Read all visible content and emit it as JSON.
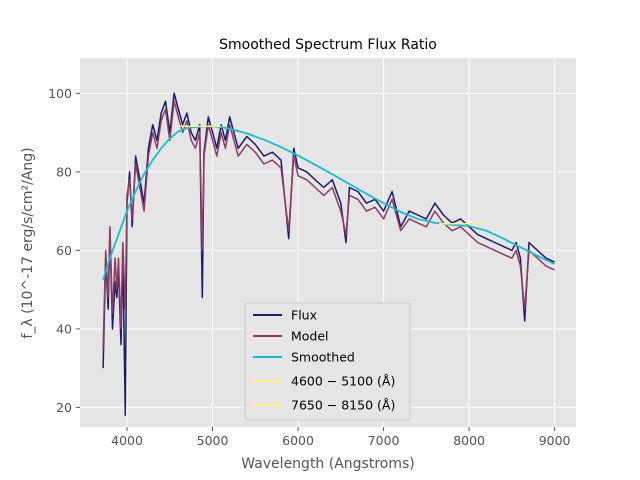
{
  "chart_data": {
    "type": "line",
    "title": "Smoothed Spectrum Flux Ratio",
    "xlabel": "Wavelength (Angstroms)",
    "ylabel": "f_λ (10^-17 erg/s/cm²/Ang)",
    "xlim": [
      3450,
      9250
    ],
    "ylim": [
      15,
      109
    ],
    "xticks": [
      4000,
      5000,
      6000,
      7000,
      8000,
      9000
    ],
    "yticks": [
      20,
      40,
      60,
      80,
      100
    ],
    "grid": true,
    "legend_position": "bottom-center",
    "series": [
      {
        "name": "Flux",
        "color": "#1b1b6b",
        "x": [
          3720,
          3750,
          3780,
          3800,
          3830,
          3860,
          3880,
          3900,
          3930,
          3950,
          3980,
          4000,
          4030,
          4060,
          4100,
          4150,
          4200,
          4250,
          4300,
          4350,
          4400,
          4450,
          4500,
          4550,
          4600,
          4650,
          4700,
          4750,
          4800,
          4850,
          4880,
          4900,
          4950,
          5000,
          5050,
          5100,
          5150,
          5200,
          5250,
          5300,
          5400,
          5500,
          5600,
          5700,
          5800,
          5890,
          5950,
          6000,
          6100,
          6200,
          6300,
          6400,
          6500,
          6560,
          6600,
          6700,
          6800,
          6900,
          7000,
          7100,
          7200,
          7300,
          7400,
          7500,
          7600,
          7700,
          7800,
          7900,
          8000,
          8100,
          8200,
          8300,
          8400,
          8500,
          8550,
          8600,
          8650,
          8700,
          8800,
          8900,
          9000
        ],
        "values": [
          30,
          58,
          45,
          65,
          40,
          52,
          48,
          55,
          36,
          60,
          18,
          72,
          80,
          66,
          84,
          78,
          72,
          86,
          92,
          88,
          95,
          98,
          90,
          100,
          96,
          92,
          95,
          90,
          88,
          92,
          48,
          85,
          94,
          90,
          86,
          92,
          88,
          94,
          90,
          86,
          89,
          87,
          84,
          85,
          83,
          63,
          86,
          81,
          80,
          78,
          76,
          78,
          72,
          62,
          76,
          75,
          72,
          73,
          70,
          75,
          66,
          70,
          69,
          68,
          72,
          69,
          67,
          68,
          66,
          64,
          63,
          62,
          61,
          60,
          62,
          58,
          42,
          62,
          60,
          58,
          57
        ]
      },
      {
        "name": "Model",
        "color": "#8b3d62",
        "x": [
          3720,
          3750,
          3780,
          3800,
          3830,
          3860,
          3880,
          3900,
          3930,
          3950,
          3980,
          4000,
          4030,
          4060,
          4100,
          4150,
          4200,
          4250,
          4300,
          4350,
          4400,
          4450,
          4500,
          4550,
          4600,
          4650,
          4700,
          4750,
          4800,
          4850,
          4880,
          4900,
          4950,
          5000,
          5050,
          5100,
          5150,
          5200,
          5250,
          5300,
          5400,
          5500,
          5600,
          5700,
          5800,
          5890,
          5950,
          6000,
          6100,
          6200,
          6300,
          6400,
          6500,
          6560,
          6600,
          6700,
          6800,
          6900,
          7000,
          7100,
          7200,
          7300,
          7400,
          7500,
          7600,
          7700,
          7800,
          7900,
          8000,
          8100,
          8200,
          8300,
          8400,
          8500,
          8550,
          8600,
          8650,
          8700,
          8800,
          8900,
          9000
        ],
        "values": [
          35,
          60,
          48,
          66,
          44,
          58,
          50,
          58,
          40,
          62,
          45,
          74,
          78,
          68,
          82,
          76,
          70,
          84,
          90,
          86,
          93,
          96,
          88,
          98,
          94,
          90,
          93,
          88,
          86,
          90,
          60,
          84,
          92,
          88,
          84,
          90,
          86,
          92,
          88,
          84,
          87,
          85,
          82,
          83,
          81,
          65,
          84,
          79,
          78,
          76,
          74,
          76,
          70,
          64,
          74,
          73,
          70,
          71,
          68,
          73,
          65,
          68,
          67,
          66,
          70,
          67,
          65,
          66,
          64,
          62,
          61,
          60,
          59,
          58,
          60,
          56,
          45,
          60,
          58,
          56,
          55
        ]
      },
      {
        "name": "Smoothed",
        "color": "#17becf",
        "x": [
          3720,
          3800,
          3900,
          4000,
          4100,
          4200,
          4300,
          4400,
          4500,
          4600,
          4700,
          4800,
          4900,
          5000,
          5100,
          5200,
          5400,
          5600,
          5800,
          6000,
          6200,
          6400,
          6600,
          6800,
          7000,
          7200,
          7400,
          7600,
          7800,
          8000,
          8200,
          8400,
          8600,
          8800,
          9000
        ],
        "values": [
          52.5,
          58,
          64,
          70,
          75,
          79.5,
          83,
          86,
          88.5,
          90.3,
          91.2,
          91.4,
          91.6,
          91.6,
          91.4,
          91,
          89.8,
          88.2,
          86.3,
          84.2,
          81.8,
          79.4,
          76.9,
          74.4,
          72,
          69.8,
          68,
          67,
          66.5,
          66.2,
          65,
          63,
          60.8,
          58.6,
          56.5
        ]
      },
      {
        "name": "4600 − 5100 (Å)",
        "color": "#fff07a",
        "x": [
          4600,
          5100
        ],
        "values": [
          91.6,
          91.6
        ]
      },
      {
        "name": "7650 − 8150 (Å)",
        "color": "#fff07a",
        "x": [
          7650,
          8150
        ],
        "values": [
          66.8,
          66.8
        ]
      }
    ]
  },
  "legend": {
    "items": [
      {
        "label": "Flux",
        "color": "#1b1b6b"
      },
      {
        "label": "Model",
        "color": "#8b3d62"
      },
      {
        "label": "Smoothed",
        "color": "#17becf"
      },
      {
        "label": "4600 − 5100 (Å)",
        "color": "#fff07a"
      },
      {
        "label": "7650 − 8150 (Å)",
        "color": "#fff07a"
      }
    ]
  }
}
